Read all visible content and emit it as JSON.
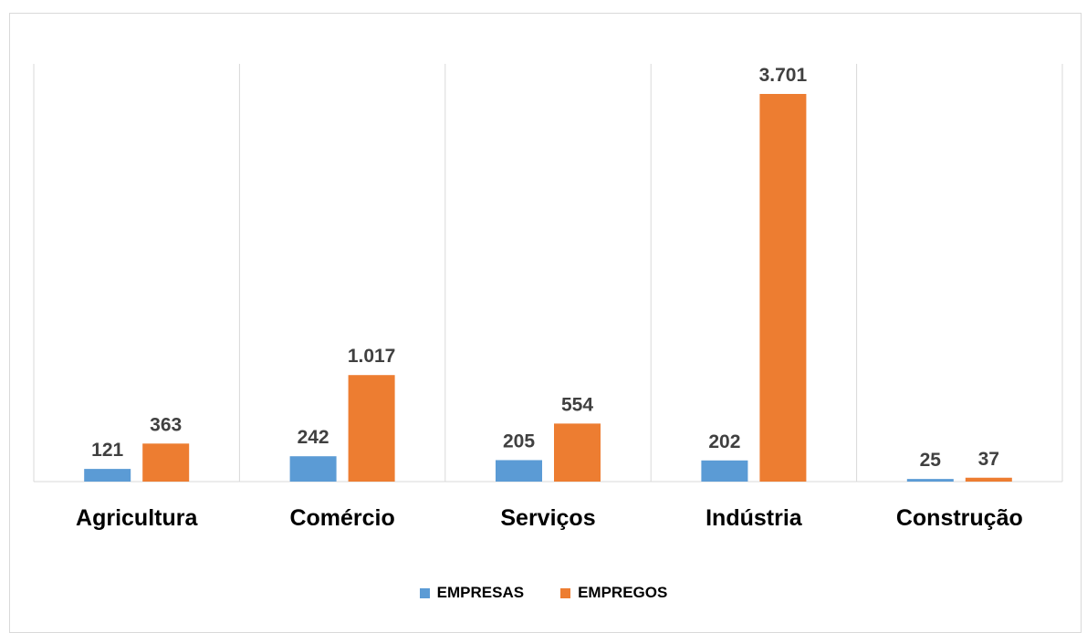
{
  "colors": {
    "empresas": "#5B9BD5",
    "empregos": "#ED7D31",
    "grid": "#d9d9d9",
    "axis": "#d9d9d9",
    "label": "#404040"
  },
  "chart_data": {
    "type": "bar",
    "title": "",
    "xlabel": "",
    "ylabel": "",
    "categories": [
      "Agricultura",
      "Comércio",
      "Serviços",
      "Indústria",
      "Construção"
    ],
    "series": [
      {
        "name": "EMPRESAS",
        "values": [
          121,
          242,
          205,
          202,
          25
        ],
        "labels": [
          "121",
          "242",
          "205",
          "202",
          "25"
        ]
      },
      {
        "name": "EMPREGOS",
        "values": [
          363,
          1017,
          554,
          3701,
          37
        ],
        "labels": [
          "363",
          "1.017",
          "554",
          "3.701",
          "37"
        ]
      }
    ],
    "ylim": [
      0,
      4000
    ],
    "grid": "vertical category separators",
    "legend_position": "bottom"
  }
}
